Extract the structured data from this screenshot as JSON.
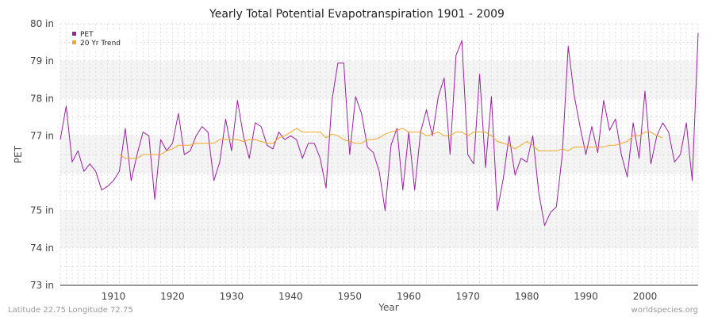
{
  "chart_data": {
    "type": "line",
    "title": "Yearly Total Potential Evapotranspiration 1901 - 2009",
    "xlabel": "Year",
    "ylabel": "PET",
    "xlim": [
      1901,
      2009
    ],
    "ylim": [
      73,
      80
    ],
    "x_ticks": [
      1910,
      1920,
      1930,
      1940,
      1950,
      1960,
      1970,
      1980,
      1990,
      2000
    ],
    "y_ticks": [
      {
        "value": 73,
        "label": "73 in"
      },
      {
        "value": 74,
        "label": "74 in"
      },
      {
        "value": 75,
        "label": "75 in"
      },
      {
        "value": 77,
        "label": "77 in"
      },
      {
        "value": 78,
        "label": "78 in"
      },
      {
        "value": 79,
        "label": "79 in"
      },
      {
        "value": 80,
        "label": "80 in"
      }
    ],
    "grid": true,
    "legend_position": "top-left",
    "series": [
      {
        "name": "PET",
        "color": "#9b1fa3",
        "x_start": 1901,
        "values": [
          76.9,
          77.8,
          76.3,
          76.6,
          76.05,
          76.25,
          76.05,
          75.55,
          75.65,
          75.8,
          76.05,
          77.2,
          75.8,
          76.5,
          77.1,
          77.0,
          75.3,
          76.9,
          76.6,
          76.8,
          77.6,
          76.5,
          76.6,
          77.0,
          77.25,
          77.1,
          75.8,
          76.3,
          77.45,
          76.6,
          77.95,
          77.0,
          76.4,
          77.35,
          77.25,
          76.75,
          76.65,
          77.1,
          76.9,
          77.0,
          76.9,
          76.4,
          76.8,
          76.8,
          76.4,
          75.6,
          77.95,
          78.95,
          78.95,
          76.5,
          78.05,
          77.6,
          76.7,
          76.55,
          76.05,
          75.0,
          76.75,
          77.2,
          75.55,
          77.1,
          75.55,
          77.1,
          77.7,
          77.0,
          78.05,
          78.55,
          76.5,
          79.15,
          79.55,
          76.5,
          76.25,
          78.65,
          76.15,
          78.05,
          75.0,
          75.85,
          77.0,
          75.95,
          76.4,
          76.3,
          77.0,
          75.5,
          74.6,
          74.95,
          75.1,
          76.5,
          79.4,
          78.1,
          77.25,
          76.5,
          77.25,
          76.55,
          77.95,
          77.15,
          77.45,
          76.5,
          75.9,
          77.35,
          76.4,
          78.2,
          76.25,
          77.0,
          77.35,
          77.1,
          76.3,
          76.5,
          77.35,
          75.8,
          79.75
        ]
      },
      {
        "name": "20 Yr Trend",
        "color": "#f5a623",
        "x_start": 1911,
        "values": [
          76.5,
          76.4,
          76.4,
          76.4,
          76.5,
          76.5,
          76.5,
          76.5,
          76.6,
          76.65,
          76.75,
          76.75,
          76.75,
          76.8,
          76.8,
          76.8,
          76.8,
          76.9,
          76.9,
          76.9,
          76.9,
          76.85,
          76.9,
          76.9,
          76.85,
          76.8,
          76.8,
          76.95,
          77.0,
          77.1,
          77.2,
          77.1,
          77.1,
          77.1,
          77.1,
          76.95,
          77.05,
          77.0,
          76.9,
          76.85,
          76.8,
          76.8,
          76.9,
          76.9,
          76.95,
          77.05,
          77.1,
          77.15,
          77.2,
          77.1,
          77.1,
          77.1,
          77.0,
          77.05,
          77.1,
          77.0,
          77.0,
          77.1,
          77.1,
          77.0,
          77.1,
          77.1,
          77.1,
          77.0,
          76.85,
          76.8,
          76.75,
          76.65,
          76.75,
          76.85,
          76.75,
          76.6,
          76.6,
          76.6,
          76.6,
          76.65,
          76.6,
          76.7,
          76.7,
          76.7,
          76.7,
          76.7,
          76.7,
          76.75,
          76.75,
          76.8,
          76.85,
          77.0,
          77.0,
          77.1,
          77.1,
          77.0,
          76.95
        ]
      }
    ]
  },
  "footer": {
    "location": "Latitude 22.75 Longitude 72.75",
    "source": "worldspecies.org"
  }
}
